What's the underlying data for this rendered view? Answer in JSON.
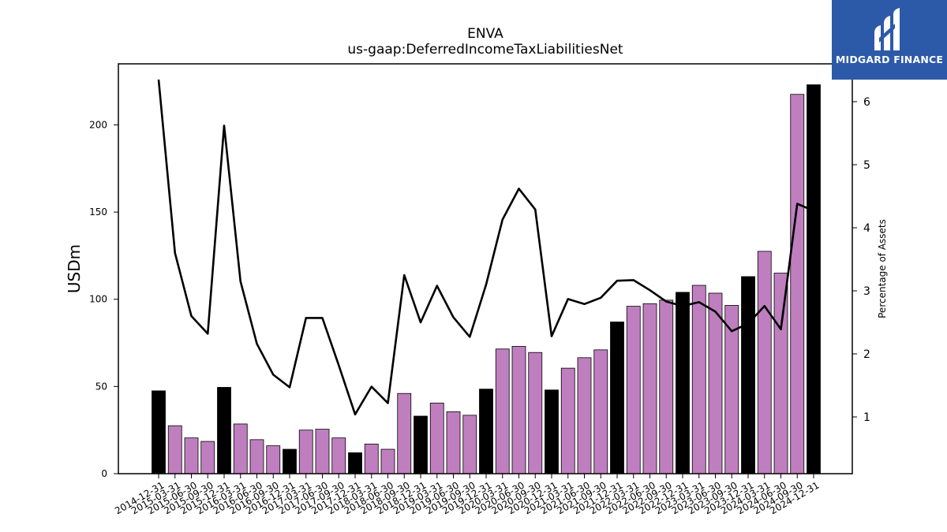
{
  "logo": {
    "text": "MIDGARD FINANCE"
  },
  "chart_data": {
    "type": "bar",
    "title": "ENVA",
    "subtitle": "us-gaap:DeferredIncomeTaxLiabilitiesNet",
    "ylabel": "USDm",
    "y2label": "Percentage of Assets",
    "ylim": [
      0,
      235
    ],
    "y2lim": [
      0.1,
      6.6
    ],
    "yticks": [
      0,
      50,
      100,
      150,
      200
    ],
    "y2ticks": [
      1,
      2,
      3,
      4,
      5,
      6
    ],
    "grid": false,
    "colors": {
      "annual": "#000000",
      "quarterly": "#bf7fbf",
      "line": "#000000"
    },
    "categories": [
      "2014-12-31",
      "2015-03-31",
      "2015-06-30",
      "2015-09-30",
      "2015-12-31",
      "2016-03-31",
      "2016-06-30",
      "2016-09-30",
      "2016-12-31",
      "2017-03-31",
      "2017-06-30",
      "2017-09-30",
      "2017-12-31",
      "2018-03-31",
      "2018-06-30",
      "2018-09-30",
      "2018-12-31",
      "2019-03-31",
      "2019-06-30",
      "2019-09-30",
      "2019-12-31",
      "2020-03-31",
      "2020-06-30",
      "2020-09-30",
      "2020-12-31",
      "2021-03-31",
      "2021-06-30",
      "2021-09-30",
      "2021-12-31",
      "2022-03-31",
      "2022-06-30",
      "2022-09-30",
      "2022-12-31",
      "2023-03-31",
      "2023-06-30",
      "2023-09-30",
      "2023-12-31",
      "2024-03-31",
      "2024-06-30",
      "2024-09-30",
      "2024-12-31"
    ],
    "series": [
      {
        "kind": "bar",
        "values": [
          47.5,
          27.5,
          20.5,
          18.5,
          49.5,
          28.5,
          19.5,
          16,
          14,
          25,
          25.5,
          20.5,
          12,
          17,
          14,
          46,
          33,
          40.5,
          35.5,
          33.5,
          48.5,
          71.5,
          73,
          69.5,
          48,
          60.5,
          66.5,
          71,
          87,
          96,
          97.5,
          99.5,
          104,
          108,
          103.5,
          96.5,
          113,
          127.5,
          115,
          217.5,
          223
        ]
      },
      {
        "kind": "line",
        "axis": "right",
        "values": [
          6.35,
          3.6,
          2.6,
          2.32,
          5.62,
          3.15,
          2.16,
          1.67,
          1.47,
          2.57,
          2.57,
          1.82,
          1.04,
          1.48,
          1.22,
          3.25,
          2.5,
          3.08,
          2.58,
          2.27,
          3.1,
          4.13,
          4.62,
          4.29,
          2.28,
          2.87,
          2.79,
          2.89,
          3.16,
          3.17,
          3.01,
          2.83,
          2.76,
          2.82,
          2.67,
          2.36,
          2.48,
          2.76,
          2.39,
          4.38,
          4.27
        ]
      }
    ]
  }
}
